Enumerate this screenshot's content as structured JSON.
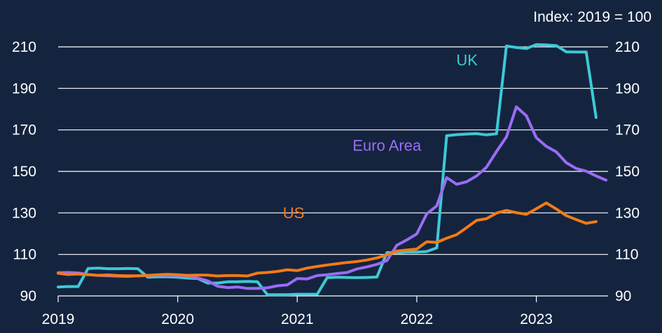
{
  "chart_data": {
    "type": "line",
    "title": "",
    "xlabel": "",
    "ylabel": "",
    "note": "Index: 2019 = 100",
    "xlim": [
      2019,
      2023.6
    ],
    "ylim": [
      90,
      210
    ],
    "yticks": [
      90,
      110,
      130,
      150,
      170,
      190,
      210
    ],
    "xticks": [
      2019,
      2020,
      2021,
      2022,
      2023
    ],
    "x_tick_labels": [
      "2019",
      "2020",
      "2021",
      "2022",
      "2023"
    ],
    "grid": true,
    "legend": "inline labels",
    "series": [
      {
        "name": "UK",
        "color": "#3ec9d6",
        "points": [
          [
            2019.0,
            94.3
          ],
          [
            2019.083,
            94.5
          ],
          [
            2019.167,
            94.5
          ],
          [
            2019.25,
            103.2
          ],
          [
            2019.333,
            103.4
          ],
          [
            2019.417,
            103.1
          ],
          [
            2019.5,
            103.1
          ],
          [
            2019.583,
            103.2
          ],
          [
            2019.667,
            103.1
          ],
          [
            2019.75,
            99.0
          ],
          [
            2019.833,
            99.2
          ],
          [
            2019.917,
            99.2
          ],
          [
            2020.0,
            99.0
          ],
          [
            2020.083,
            98.6
          ],
          [
            2020.167,
            98.4
          ],
          [
            2020.25,
            96.2
          ],
          [
            2020.333,
            96.2
          ],
          [
            2020.417,
            96.8
          ],
          [
            2020.5,
            96.8
          ],
          [
            2020.583,
            97.0
          ],
          [
            2020.667,
            96.8
          ],
          [
            2020.75,
            90.6
          ],
          [
            2020.833,
            90.6
          ],
          [
            2020.917,
            90.6
          ],
          [
            2021.0,
            90.8
          ],
          [
            2021.083,
            90.8
          ],
          [
            2021.167,
            90.8
          ],
          [
            2021.25,
            98.8
          ],
          [
            2021.333,
            99.0
          ],
          [
            2021.417,
            98.9
          ],
          [
            2021.5,
            98.8
          ],
          [
            2021.583,
            98.9
          ],
          [
            2021.667,
            99.1
          ],
          [
            2021.75,
            110.9
          ],
          [
            2021.833,
            110.8
          ],
          [
            2021.917,
            111.1
          ],
          [
            2022.0,
            111.1
          ],
          [
            2022.083,
            111.4
          ],
          [
            2022.167,
            113.2
          ],
          [
            2022.25,
            167.2
          ],
          [
            2022.333,
            167.7
          ],
          [
            2022.417,
            168.0
          ],
          [
            2022.5,
            168.2
          ],
          [
            2022.583,
            167.6
          ],
          [
            2022.667,
            168.1
          ],
          [
            2022.75,
            210.4
          ],
          [
            2022.833,
            209.7
          ],
          [
            2022.917,
            209.2
          ],
          [
            2023.0,
            211.1
          ],
          [
            2023.083,
            210.9
          ],
          [
            2023.167,
            210.6
          ],
          [
            2023.25,
            207.6
          ],
          [
            2023.333,
            207.5
          ],
          [
            2023.417,
            207.5
          ],
          [
            2023.5,
            176.0
          ]
        ]
      },
      {
        "name": "Euro Area",
        "color": "#9b6cf4",
        "points": [
          [
            2019.0,
            101.2
          ],
          [
            2019.083,
            101.3
          ],
          [
            2019.167,
            101.1
          ],
          [
            2019.25,
            100.3
          ],
          [
            2019.333,
            99.9
          ],
          [
            2019.417,
            99.7
          ],
          [
            2019.5,
            99.5
          ],
          [
            2019.583,
            99.4
          ],
          [
            2019.667,
            99.7
          ],
          [
            2019.75,
            99.8
          ],
          [
            2019.833,
            100.1
          ],
          [
            2019.917,
            99.9
          ],
          [
            2020.0,
            99.9
          ],
          [
            2020.083,
            99.5
          ],
          [
            2020.167,
            98.6
          ],
          [
            2020.25,
            97.3
          ],
          [
            2020.333,
            94.7
          ],
          [
            2020.417,
            94.0
          ],
          [
            2020.5,
            94.3
          ],
          [
            2020.583,
            93.6
          ],
          [
            2020.667,
            93.6
          ],
          [
            2020.75,
            93.9
          ],
          [
            2020.833,
            94.9
          ],
          [
            2020.917,
            95.3
          ],
          [
            2021.0,
            98.4
          ],
          [
            2021.083,
            98.2
          ],
          [
            2021.167,
            99.8
          ],
          [
            2021.25,
            100.2
          ],
          [
            2021.333,
            100.8
          ],
          [
            2021.417,
            101.3
          ],
          [
            2021.5,
            103.0
          ],
          [
            2021.583,
            104.0
          ],
          [
            2021.667,
            105.2
          ],
          [
            2021.75,
            107.0
          ],
          [
            2021.833,
            114.4
          ],
          [
            2021.917,
            117.0
          ],
          [
            2022.0,
            119.9
          ],
          [
            2022.083,
            129.5
          ],
          [
            2022.167,
            133.4
          ],
          [
            2022.25,
            147.0
          ],
          [
            2022.333,
            143.8
          ],
          [
            2022.417,
            145.0
          ],
          [
            2022.5,
            147.8
          ],
          [
            2022.583,
            152.0
          ],
          [
            2022.667,
            159.6
          ],
          [
            2022.75,
            166.6
          ],
          [
            2022.833,
            181.1
          ],
          [
            2022.917,
            176.8
          ],
          [
            2023.0,
            166.2
          ],
          [
            2023.083,
            162.1
          ],
          [
            2023.167,
            159.4
          ],
          [
            2023.25,
            154.2
          ],
          [
            2023.333,
            151.4
          ],
          [
            2023.417,
            150.1
          ],
          [
            2023.5,
            147.8
          ],
          [
            2023.583,
            145.8
          ]
        ]
      },
      {
        "name": "US",
        "color": "#f47a16",
        "points": [
          [
            2019.0,
            100.9
          ],
          [
            2019.083,
            100.3
          ],
          [
            2019.167,
            100.6
          ],
          [
            2019.25,
            100.2
          ],
          [
            2019.333,
            99.9
          ],
          [
            2019.417,
            100.1
          ],
          [
            2019.5,
            99.8
          ],
          [
            2019.583,
            99.7
          ],
          [
            2019.667,
            99.7
          ],
          [
            2019.75,
            99.9
          ],
          [
            2019.833,
            100.2
          ],
          [
            2019.917,
            100.4
          ],
          [
            2020.0,
            100.2
          ],
          [
            2020.083,
            99.9
          ],
          [
            2020.167,
            100.0
          ],
          [
            2020.25,
            100.0
          ],
          [
            2020.333,
            99.6
          ],
          [
            2020.417,
            99.8
          ],
          [
            2020.5,
            99.8
          ],
          [
            2020.583,
            99.6
          ],
          [
            2020.667,
            101.0
          ],
          [
            2020.75,
            101.3
          ],
          [
            2020.833,
            101.8
          ],
          [
            2020.917,
            102.6
          ],
          [
            2021.0,
            102.2
          ],
          [
            2021.083,
            103.4
          ],
          [
            2021.167,
            104.2
          ],
          [
            2021.25,
            104.9
          ],
          [
            2021.333,
            105.5
          ],
          [
            2021.417,
            106.1
          ],
          [
            2021.5,
            106.6
          ],
          [
            2021.583,
            107.3
          ],
          [
            2021.667,
            108.3
          ],
          [
            2021.75,
            109.8
          ],
          [
            2021.833,
            111.6
          ],
          [
            2021.917,
            112.1
          ],
          [
            2022.0,
            112.6
          ],
          [
            2022.083,
            116.1
          ],
          [
            2022.167,
            115.8
          ],
          [
            2022.25,
            117.8
          ],
          [
            2022.333,
            119.5
          ],
          [
            2022.417,
            122.9
          ],
          [
            2022.5,
            126.4
          ],
          [
            2022.583,
            127.2
          ],
          [
            2022.667,
            129.9
          ],
          [
            2022.75,
            131.2
          ],
          [
            2022.833,
            130.1
          ],
          [
            2022.917,
            129.3
          ],
          [
            2023.0,
            132.0
          ],
          [
            2023.083,
            134.8
          ],
          [
            2023.167,
            131.9
          ],
          [
            2023.25,
            128.7
          ],
          [
            2023.333,
            126.8
          ],
          [
            2023.417,
            125.0
          ],
          [
            2023.5,
            125.8
          ]
        ]
      }
    ],
    "annotations": [
      {
        "text": "UK",
        "series": "UK",
        "x": 2022.42,
        "y": 201
      },
      {
        "text": "Euro Area",
        "series": "Euro Area",
        "x": 2021.75,
        "y": 160
      },
      {
        "text": "US",
        "series": "US",
        "x": 2020.97,
        "y": 127.5
      }
    ]
  }
}
